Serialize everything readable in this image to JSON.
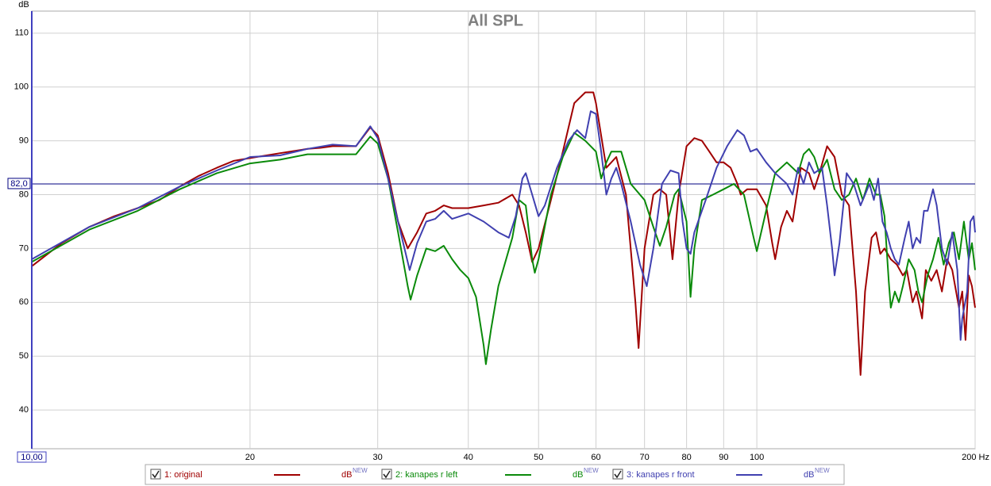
{
  "chart_data": {
    "type": "line",
    "title": "All SPL",
    "y_label": "dB",
    "xscale": "log",
    "grid": true,
    "xlim": [
      10,
      200
    ],
    "ylim": [
      32.8,
      114.1
    ],
    "xticks": [
      {
        "value": 10,
        "label": "10,00"
      },
      20,
      30,
      40,
      50,
      60,
      70,
      80,
      90,
      100,
      {
        "value": 200,
        "label": "200 Hz"
      }
    ],
    "yticks": [
      40,
      50,
      60,
      70,
      80,
      90,
      100,
      110
    ],
    "reference_line": {
      "value": 82,
      "label": "82,0",
      "color": "#000080"
    },
    "legend_unit": "dB",
    "legend_unit_sup": "NEW",
    "series": [
      {
        "name": "1: original",
        "color": "#a00000",
        "x": [
          10,
          11,
          12,
          13,
          14,
          15,
          16,
          17,
          18,
          19,
          20,
          22,
          24,
          25,
          26,
          28,
          29.3,
          30,
          31,
          32,
          33,
          34,
          35,
          36,
          37,
          38,
          40,
          42,
          44,
          46,
          47,
          48,
          49,
          50,
          52,
          54,
          56,
          58,
          59.5,
          60,
          62,
          64,
          66,
          68,
          68.7,
          70,
          72,
          73.5,
          75,
          76.5,
          78,
          80,
          82,
          84,
          86,
          88,
          90,
          92,
          94,
          95,
          97,
          100,
          103,
          105,
          106,
          108,
          110,
          112,
          115,
          118,
          120,
          122,
          125,
          128,
          131,
          134,
          137,
          139,
          141,
          144,
          146,
          148,
          150,
          153,
          156,
          159,
          161,
          164,
          166,
          169,
          171,
          174,
          177,
          180,
          183,
          186,
          190,
          192,
          194,
          196,
          198,
          200
        ],
        "values": [
          66.7,
          71,
          74,
          76,
          77.5,
          79,
          81.5,
          83.5,
          85,
          86.3,
          86.8,
          87.7,
          88.5,
          88.7,
          89,
          89,
          92.5,
          91,
          84,
          75,
          70,
          73,
          76.5,
          77,
          78,
          77.5,
          77.5,
          78,
          78.5,
          80,
          78,
          73,
          67.5,
          70,
          79,
          88,
          97,
          99,
          99,
          97,
          85,
          87,
          80,
          60,
          51.5,
          70,
          80,
          81,
          80,
          68,
          80,
          89,
          90.5,
          90,
          88,
          86,
          86,
          85,
          82,
          80,
          81,
          81,
          78,
          71,
          68,
          74,
          77,
          75,
          85,
          84,
          81,
          84,
          89,
          87,
          80,
          78,
          62,
          46.5,
          62,
          72,
          73,
          69,
          70,
          68,
          67,
          65,
          66,
          60,
          62,
          57,
          66,
          64,
          66,
          62,
          68,
          66,
          59,
          62,
          53,
          65,
          63,
          59
        ]
      },
      {
        "name": "2: kanapes r left",
        "color": "#0a8a0a",
        "x": [
          10,
          12,
          14,
          16,
          18,
          20,
          22,
          24,
          26,
          28,
          29.3,
          30,
          31,
          32,
          33,
          33.3,
          34,
          35,
          36,
          37,
          38,
          39,
          40,
          41,
          42,
          42.3,
          43,
          44,
          46,
          47,
          48,
          49,
          49.4,
          50,
          52,
          54,
          56,
          58,
          60,
          61,
          62,
          63,
          65,
          67,
          70,
          72,
          73.5,
          75,
          77,
          78,
          80,
          81,
          82,
          84,
          87,
          90,
          93,
          96,
          99,
          100,
          103,
          106,
          110,
          114,
          116,
          118,
          120,
          122,
          125,
          128,
          131,
          134,
          137,
          140,
          143,
          146,
          148,
          150,
          152,
          153,
          155,
          157,
          159,
          162,
          165,
          167,
          169,
          172,
          175,
          178,
          181,
          184,
          187,
          190,
          193,
          196,
          198,
          200
        ],
        "values": [
          67.5,
          73.5,
          77,
          81,
          84,
          85.8,
          86.5,
          87.5,
          87.5,
          87.5,
          90.8,
          89.5,
          83,
          73,
          63,
          60.5,
          65,
          70,
          69.5,
          70.5,
          68,
          66,
          64.5,
          61,
          52,
          48.5,
          55,
          63,
          72,
          79,
          78,
          68,
          65.5,
          68,
          80,
          87,
          91.5,
          90,
          88,
          83,
          86,
          88,
          88,
          82,
          79,
          74,
          70.5,
          74,
          80,
          81,
          75,
          61,
          70,
          79,
          80,
          81,
          82,
          80,
          72,
          69.5,
          77,
          84,
          86,
          84,
          87.5,
          88.5,
          87,
          84,
          86.5,
          81,
          79,
          80,
          83,
          79,
          83,
          80,
          80,
          76,
          64,
          59,
          62,
          60,
          63,
          68,
          66,
          62,
          60,
          65,
          68,
          72,
          67,
          71,
          73,
          68,
          75,
          68,
          71,
          66
        ]
      },
      {
        "name": "3: kanapes r front",
        "color": "#4040b0",
        "x": [
          10,
          12,
          14,
          16,
          18,
          20,
          22,
          24,
          26,
          28,
          29.3,
          30,
          31,
          32,
          33.2,
          34,
          35,
          36,
          37,
          38,
          40,
          42,
          44,
          45.5,
          46.5,
          47.5,
          48,
          49,
          50,
          51,
          53,
          55,
          56.5,
          58,
          59,
          60,
          61,
          62,
          63,
          64,
          65,
          67,
          69,
          70.5,
          72,
          74,
          76,
          78,
          79,
          80,
          81,
          82,
          85,
          88,
          91,
          94,
          96,
          98,
          100,
          103,
          106,
          108,
          110,
          112,
          114,
          116,
          118,
          120,
          123,
          125,
          127,
          128,
          130,
          133,
          136,
          139,
          141,
          143,
          145,
          147,
          149,
          151,
          153,
          155,
          157,
          160,
          162,
          164,
          166,
          168,
          170,
          172,
          175,
          177,
          180,
          183,
          186,
          189,
          191,
          192,
          195,
          197,
          199,
          200
        ],
        "values": [
          68,
          74,
          77.5,
          81.5,
          84.5,
          87,
          87.3,
          88.5,
          89.3,
          89,
          92.7,
          90.5,
          83,
          75,
          66,
          71,
          75,
          75.5,
          77,
          75.5,
          76.5,
          75,
          73,
          72,
          76,
          83,
          84,
          80,
          76,
          78,
          85,
          90,
          92,
          90.5,
          95.5,
          95,
          88,
          80,
          83,
          85,
          82,
          75,
          67,
          63,
          70,
          82,
          84.5,
          84,
          75,
          70,
          69,
          73,
          79,
          85,
          89,
          92,
          91,
          88,
          88.5,
          86,
          84,
          83,
          82,
          80,
          85,
          82,
          86,
          84,
          85,
          78,
          70,
          65,
          71,
          84,
          82,
          78,
          80,
          82,
          79,
          83,
          75,
          73,
          70,
          68,
          67,
          72,
          75,
          70,
          72,
          71,
          77,
          77,
          81,
          78,
          70,
          67,
          73,
          66,
          53,
          57,
          62,
          75,
          76,
          73
        ]
      }
    ]
  }
}
